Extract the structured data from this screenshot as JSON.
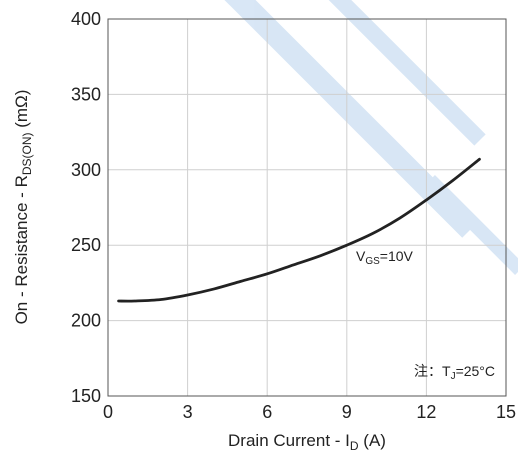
{
  "chart_data": {
    "type": "line",
    "xlabel": "Drain Current - I",
    "xlabel_sub": "D",
    "xlabel_unit": " (A)",
    "ylabel": "On - Resistance - R",
    "ylabel_sub": "DS(ON)",
    "ylabel_unit": " (mΩ)",
    "xlim": [
      0,
      15
    ],
    "ylim": [
      150,
      400
    ],
    "xticks": [
      "0",
      "3",
      "6",
      "9",
      "12",
      "15"
    ],
    "yticks": [
      "150",
      "200",
      "250",
      "300",
      "350",
      "400"
    ],
    "grid": true,
    "series": [
      {
        "x": [
          0.4,
          1.0,
          2.0,
          3.0,
          4.0,
          5.0,
          6.0,
          7.0,
          8.0,
          9.0,
          10.0,
          11.0,
          12.0,
          13.0,
          14.0
        ],
        "y": [
          213,
          213,
          214,
          217,
          221,
          226,
          231,
          237,
          243,
          250,
          258,
          268,
          280,
          293,
          307
        ]
      }
    ],
    "annotations": {
      "vgs": {
        "prefix": "V",
        "sub": "GS",
        "suffix": "=10V"
      },
      "tj": {
        "note": "注：",
        "prefix": "T",
        "sub": "J",
        "suffix": "=25°C"
      }
    }
  },
  "colors": {
    "line": "#222222",
    "grid": "#cfcfcf",
    "watermark": "#b9d3ee"
  }
}
